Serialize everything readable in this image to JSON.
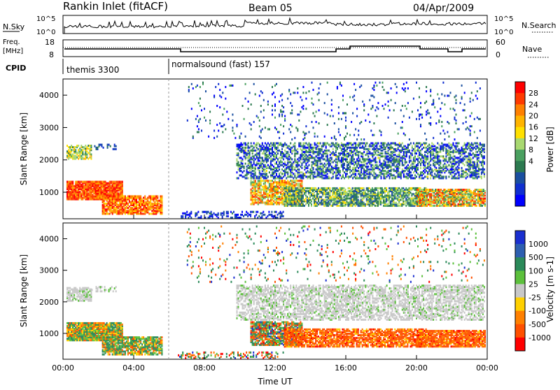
{
  "header": {
    "station": "Rankin Inlet (fitACF)",
    "beam": "Beam 05",
    "date": "04/Apr/2009"
  },
  "top_panels": {
    "nsky_label": "N.Sky",
    "nsky_ticks": [
      "10^5",
      "10^0"
    ],
    "nsearch_label": "N.Search",
    "nsearch_ticks": [
      "10^5",
      "10^0"
    ],
    "freq_label": "Freq.",
    "freq_unit": "[MHz]",
    "freq_ticks": [
      "18",
      "8"
    ],
    "nave_label": "Nave",
    "nave_ticks": [
      "60",
      "0"
    ],
    "cpid_label": "CPID",
    "cpid_segments": [
      {
        "label": "themis 3300",
        "start_hour": 0
      },
      {
        "label": "normalsound (fast) 157",
        "start_hour": 6
      }
    ]
  },
  "chart_data": [
    {
      "type": "heatmap",
      "name": "power",
      "ylabel": "Slant Range [km]",
      "xlabel": "",
      "x_ticks": [
        "00:00",
        "04:00",
        "08:00",
        "12:00",
        "16:00",
        "20:00",
        "00:00"
      ],
      "y_ticks": [
        "1000",
        "2000",
        "3000",
        "4000"
      ],
      "xlim": [
        0,
        24
      ],
      "ylim": [
        180,
        4500
      ],
      "colorbar_title": "Power [dB]",
      "colorbar_labels": [
        "28",
        "24",
        "20",
        "16",
        "12",
        "8",
        "4"
      ],
      "colorbar_colors": [
        "#ff0000",
        "#ff3a00",
        "#ff8000",
        "#ffb400",
        "#ffe000",
        "#a8d870",
        "#4aa060",
        "#2c7a50",
        "#1a4fa0",
        "#1030d0",
        "#0000ff"
      ]
    },
    {
      "type": "heatmap",
      "name": "velocity",
      "ylabel": "Slant Range [km]",
      "xlabel": "Time UT",
      "x_ticks": [
        "00:00",
        "04:00",
        "08:00",
        "12:00",
        "16:00",
        "20:00",
        "00:00"
      ],
      "y_ticks": [
        "1000",
        "2000",
        "3000",
        "4000"
      ],
      "xlim": [
        0,
        24
      ],
      "ylim": [
        180,
        4500
      ],
      "colorbar_title": "Velocity [m s-1]",
      "colorbar_labels": [
        "1000",
        "500",
        "100",
        "25",
        "-25",
        "-100",
        "-500",
        "-1000"
      ],
      "colorbar_colors": [
        "#1a2fd0",
        "#2d5fb0",
        "#2b8a5a",
        "#5cc03c",
        "#c8c8c8",
        "#ffd000",
        "#ff8000",
        "#ff5000",
        "#ff0000"
      ]
    }
  ]
}
